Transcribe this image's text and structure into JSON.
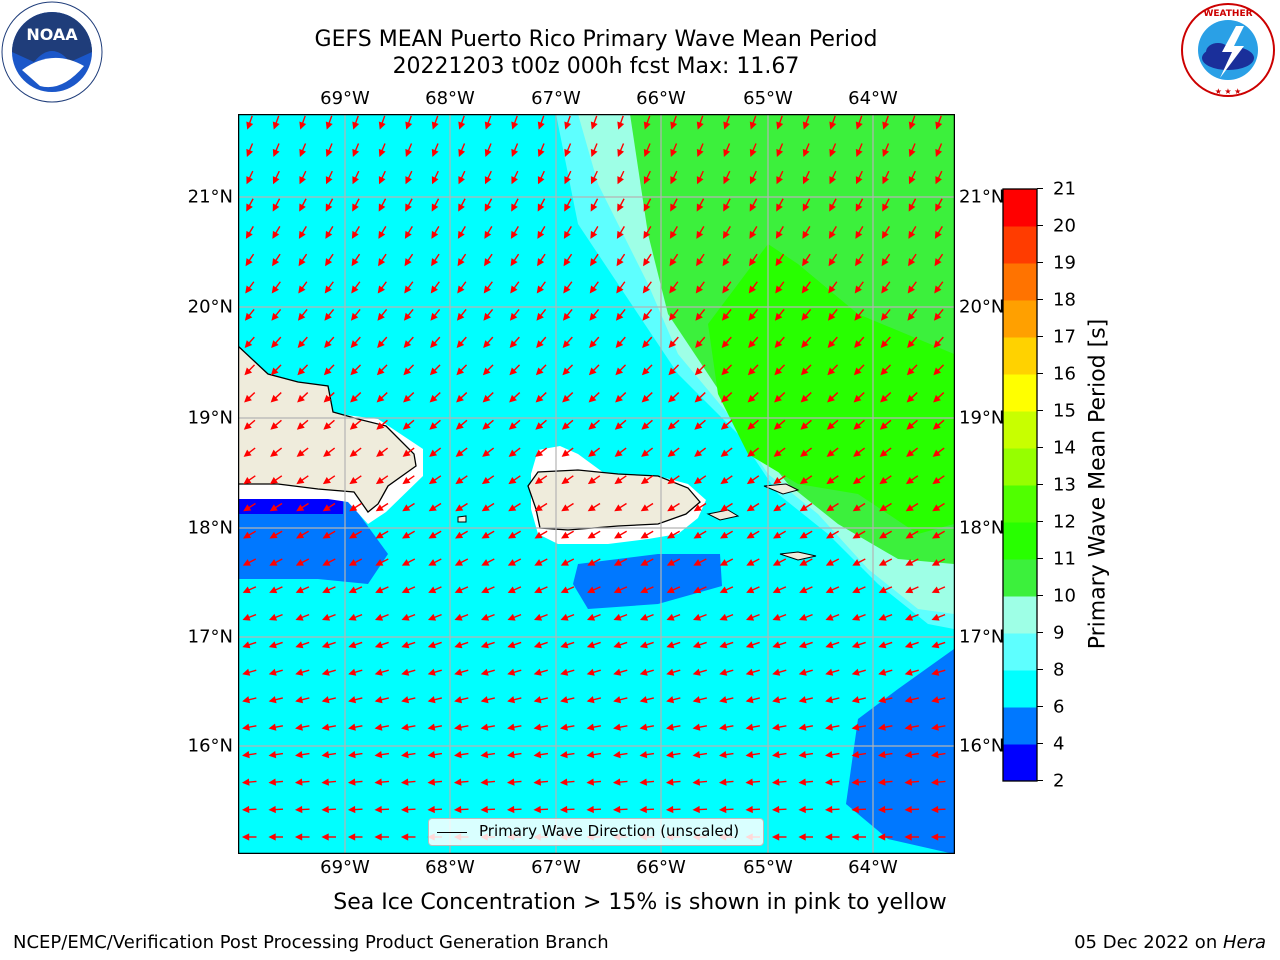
{
  "title_line1": "GEFS MEAN Puerto Rico Primary Wave Mean Period",
  "title_line2": "20221203 t00z 000h fcst   Max: 11.67",
  "lon_ticks": [
    "69°W",
    "68°W",
    "67°W",
    "66°W",
    "65°W",
    "64°W"
  ],
  "lat_ticks": [
    "21°N",
    "20°N",
    "19°N",
    "18°N",
    "17°N",
    "16°N"
  ],
  "colorbar": {
    "label": "Primary Wave Mean Period [s]",
    "ticks": [
      "2",
      "4",
      "6",
      "8",
      "9",
      "10",
      "11",
      "12",
      "13",
      "14",
      "15",
      "16",
      "17",
      "18",
      "19",
      "20",
      "21"
    ],
    "colors": [
      "#0000ff",
      "#0078ff",
      "#00ffff",
      "#5effff",
      "#9effe6",
      "#3cf03c",
      "#28ff00",
      "#50ff00",
      "#96ff00",
      "#c8ff00",
      "#ffff00",
      "#ffd200",
      "#ffa000",
      "#ff7300",
      "#ff3c00",
      "#ff0000"
    ]
  },
  "legend_label": "Primary Wave Direction (unscaled)",
  "caption": "Sea Ice Concentration > 15% is shown in pink to yellow",
  "footer_left": "NCEP/EMC/Verification Post Processing Product Generation Branch",
  "footer_date": "05 Dec 2022 on ",
  "footer_machine": "Hera",
  "logos": {
    "noaa": {
      "text": "NOAA",
      "ring_text": "NATIONAL OCEANIC AND ATMOSPHERIC ADMINISTRATION · U.S. DEPARTMENT OF COMMERCE"
    },
    "nws": {
      "ring_text": "NATIONAL WEATHER SERVICE"
    }
  },
  "colors": {
    "land": "#efecdc",
    "arrow": "#ff0000",
    "grid": "#b4b4b4"
  }
}
